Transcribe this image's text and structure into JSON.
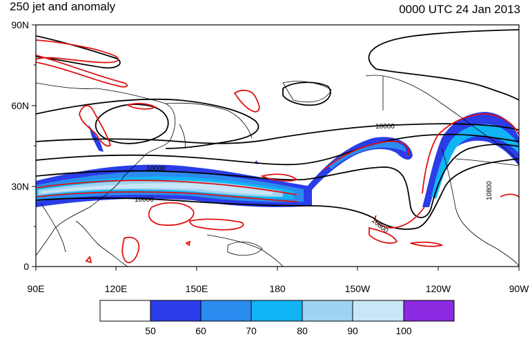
{
  "header": {
    "title": "250 jet and anomaly",
    "valid_time": "0000 UTC 24 Jan 2013"
  },
  "map": {
    "lat_ticks": [
      "90N",
      "60N",
      "30N",
      "0"
    ],
    "lon_ticks": [
      "90E",
      "120E",
      "150E",
      "180",
      "150W",
      "120W",
      "90W"
    ],
    "contour_labels": [
      "10000",
      "10000",
      "10000",
      "10800",
      "10800"
    ],
    "colors": {
      "geopotential_contour": "#000000",
      "anomaly_contour": "#e01010",
      "coastline": "#000000"
    }
  },
  "legend": {
    "labels": [
      "50",
      "60",
      "70",
      "80",
      "90",
      "100"
    ],
    "colors": [
      "#ffffff",
      "#2a3de8",
      "#2b8cf0",
      "#10b4f5",
      "#9fd3f2",
      "#c9e6f7",
      "#8a2be2"
    ]
  }
}
